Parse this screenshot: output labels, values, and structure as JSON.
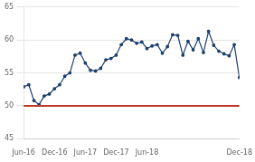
{
  "chart_data": {
    "type": "line",
    "categories": [
      "Jun-16",
      null,
      null,
      null,
      null,
      null,
      "Dec-16",
      null,
      null,
      null,
      null,
      null,
      "Jun-17",
      null,
      null,
      null,
      null,
      null,
      "Dec-17",
      null,
      null,
      null,
      null,
      null,
      "Jun-18",
      null,
      null,
      null,
      null,
      null,
      null,
      null,
      null,
      null,
      null,
      null,
      null,
      null,
      null,
      null,
      null,
      null,
      "Dec-18"
    ],
    "values": [
      52.9,
      53.2,
      50.8,
      50.2,
      51.5,
      51.8,
      52.6,
      53.2,
      54.5,
      55.0,
      57.7,
      58.0,
      56.5,
      55.4,
      55.3,
      55.7,
      57.0,
      57.2,
      57.7,
      59.3,
      60.2,
      60.0,
      59.5,
      59.7,
      58.7,
      59.1,
      59.3,
      58.0,
      59.0,
      60.8,
      60.7,
      57.7,
      59.8,
      58.5,
      60.2,
      58.1,
      61.3,
      59.2,
      58.3,
      57.9,
      57.6,
      59.3,
      54.3
    ],
    "color": "#1c3f6e",
    "marker": "circle",
    "reference_line": {
      "value": 50,
      "color": "#c0392b"
    },
    "ylim": [
      45,
      65
    ],
    "yticks": [
      45,
      50,
      55,
      60,
      65
    ],
    "grid": true
  }
}
